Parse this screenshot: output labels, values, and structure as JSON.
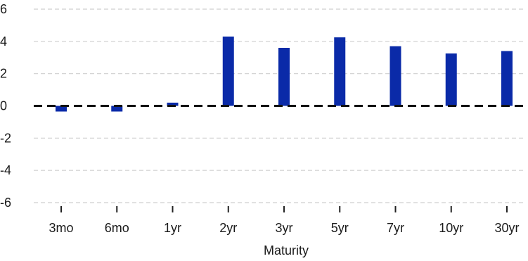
{
  "chart_data": {
    "type": "bar",
    "title": "",
    "xlabel": "Maturity",
    "ylabel": "",
    "categories": [
      "3mo",
      "6mo",
      "1yr",
      "2yr",
      "3yr",
      "5yr",
      "7yr",
      "10yr",
      "30yr"
    ],
    "values": [
      -0.35,
      -0.35,
      0.2,
      4.3,
      3.6,
      4.25,
      3.7,
      3.25,
      3.4
    ],
    "ylim": [
      -6,
      6
    ],
    "yticks": [
      6,
      4,
      2,
      0,
      -2,
      -4,
      -6
    ],
    "grid": true,
    "legend": "none",
    "zero_line": true,
    "colors": {
      "bar": "#0a2aa8",
      "grid": "#cfcfcf",
      "zero_line": "#111111",
      "text": "#1a1a1a"
    }
  }
}
